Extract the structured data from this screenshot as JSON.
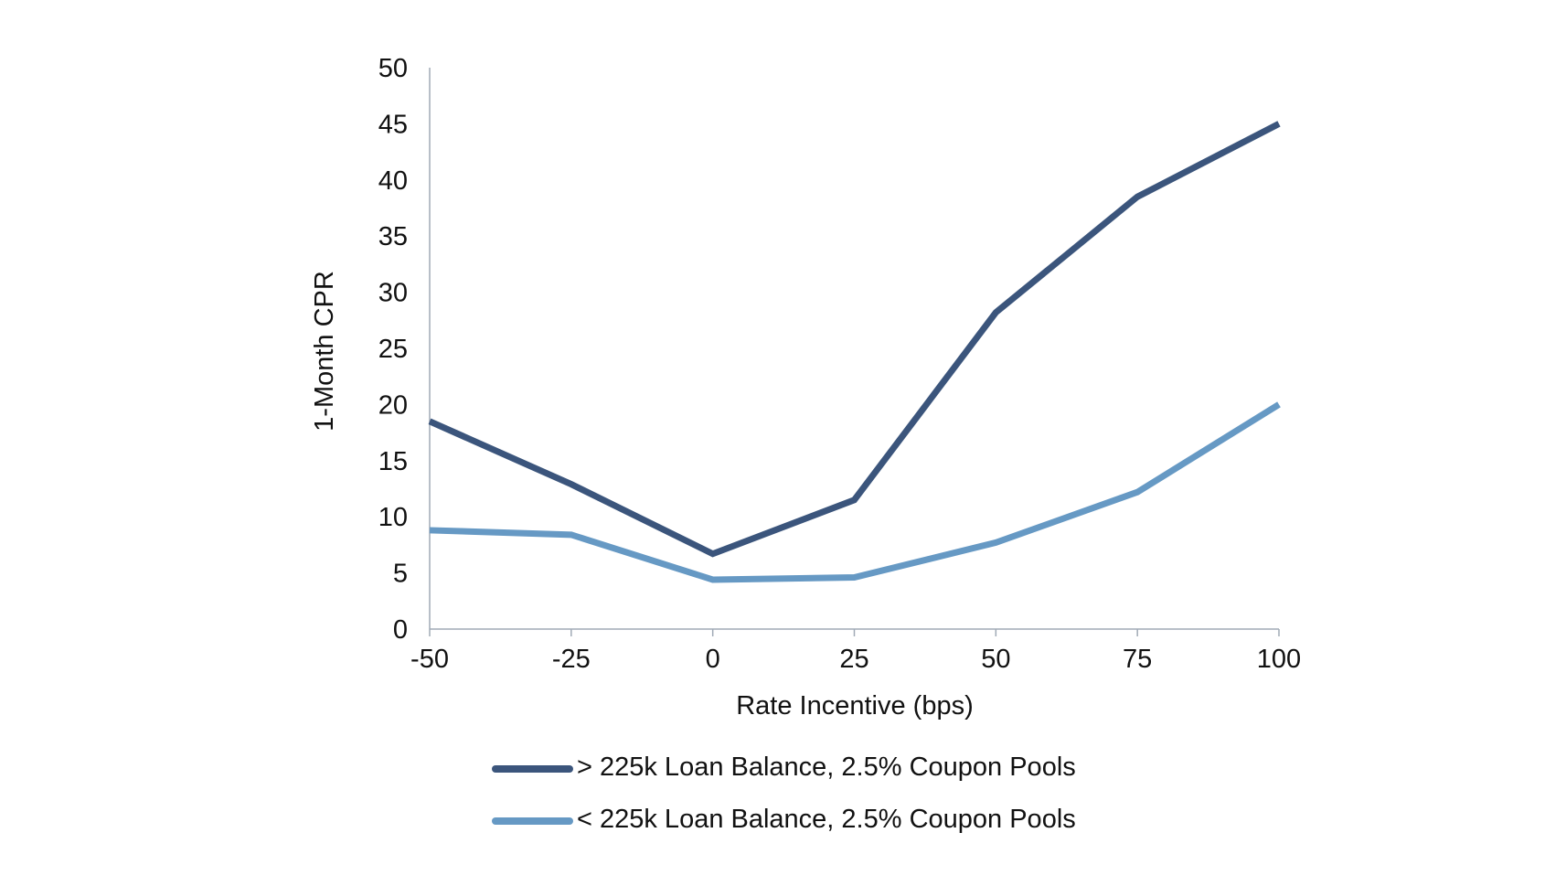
{
  "chart_data": {
    "type": "line",
    "title": "",
    "xlabel": "Rate Incentive (bps)",
    "ylabel": "1-Month CPR",
    "x": [
      -50,
      -25,
      0,
      25,
      50,
      75,
      100
    ],
    "x_tick_labels": [
      "-50",
      "-25",
      "0",
      "25",
      "50",
      "75",
      "100"
    ],
    "y_tick_labels": [
      "0",
      "5",
      "10",
      "15",
      "20",
      "25",
      "30",
      "35",
      "40",
      "45",
      "50"
    ],
    "xlim": [
      -50,
      100
    ],
    "ylim": [
      0,
      50
    ],
    "grid": false,
    "legend_position": "bottom",
    "series": [
      {
        "name": "> 225k Loan Balance, 2.5% Coupon Pools",
        "color": "#3b557c",
        "values": [
          18.5,
          12.9,
          6.7,
          11.5,
          28.2,
          38.5,
          45.0
        ]
      },
      {
        "name": "< 225k Loan Balance, 2.5% Coupon Pools",
        "color": "#6699c4",
        "values": [
          8.8,
          8.4,
          4.4,
          4.6,
          7.7,
          12.2,
          20.0
        ]
      }
    ]
  }
}
